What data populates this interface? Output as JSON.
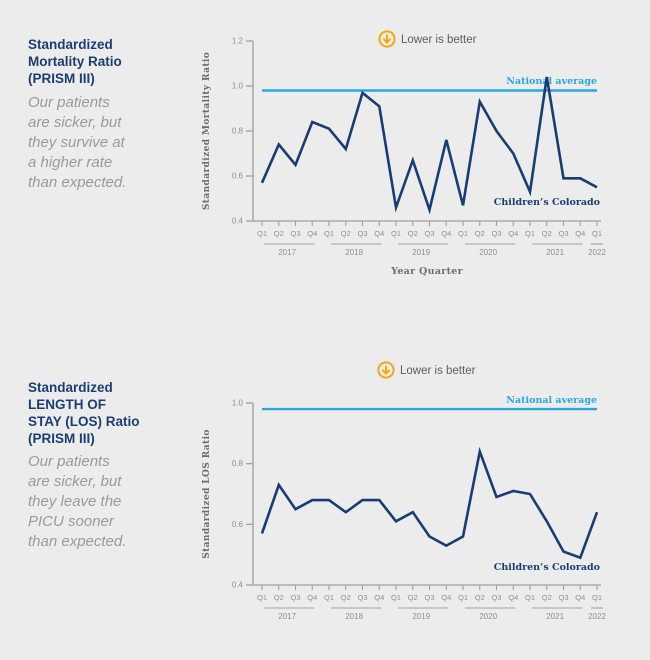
{
  "colors": {
    "background": "#ececec",
    "navy": "#193d72",
    "cyan": "#2aa6de",
    "orange": "#f3a712",
    "sub_gray": "#9a9a9a",
    "axis_gray": "#a0a0a0",
    "tick_gray": "#8f8f8f",
    "slab_gray": "#6c6c6c"
  },
  "panels": [
    {
      "heading": "Standardized\nMortality Ratio\n(PRISM III)",
      "subtext": "Our patients\nare sicker, but\nthey survive at\na higher rate\nthan expected."
    },
    {
      "heading": "Standardized\nLENGTH OF\nSTAY (LOS) Ratio\n(PRISM III)",
      "subtext": "Our patients\nare sicker, but\nthey leave the\nPICU sooner\nthan expected."
    }
  ],
  "chart_data": [
    {
      "type": "line",
      "annotation": "Lower is better",
      "ylabel": "Standardized Mortality Ratio",
      "xlabel": "Year Quarter",
      "ylim": [
        0.4,
        1.2
      ],
      "yticks": [
        0.4,
        0.6,
        0.8,
        1.0,
        1.2
      ],
      "categories": [
        "Q1",
        "Q2",
        "Q3",
        "Q4",
        "Q1",
        "Q2",
        "Q3",
        "Q4",
        "Q1",
        "Q2",
        "Q3",
        "Q4",
        "Q1",
        "Q2",
        "Q3",
        "Q4",
        "Q1",
        "Q2",
        "Q3",
        "Q4",
        "Q1"
      ],
      "year_groups": [
        {
          "label": "2017",
          "count": 4
        },
        {
          "label": "2018",
          "count": 4
        },
        {
          "label": "2019",
          "count": 4
        },
        {
          "label": "2020",
          "count": 4
        },
        {
          "label": "2021",
          "count": 4
        },
        {
          "label": "2022",
          "count": 1
        }
      ],
      "series": [
        {
          "name": "Children’s Colorado",
          "values": [
            0.57,
            0.74,
            0.65,
            0.84,
            0.81,
            0.72,
            0.97,
            0.91,
            0.46,
            0.67,
            0.45,
            0.76,
            0.47,
            0.93,
            0.8,
            0.7,
            0.53,
            1.04,
            0.59,
            0.59,
            0.55
          ]
        }
      ],
      "reference_line": {
        "label": "National average",
        "value": 0.98
      },
      "legend_position": "in-plot",
      "grid": false
    },
    {
      "type": "line",
      "annotation": "Lower is better",
      "ylabel": "Standardized LOS Ratio",
      "xlabel": "",
      "ylim": [
        0.4,
        1.0
      ],
      "yticks": [
        0.4,
        0.6,
        0.8,
        1.0
      ],
      "categories": [
        "Q1",
        "Q2",
        "Q3",
        "Q4",
        "Q1",
        "Q2",
        "Q3",
        "Q4",
        "Q1",
        "Q2",
        "Q3",
        "Q4",
        "Q1",
        "Q2",
        "Q3",
        "Q4",
        "Q1",
        "Q2",
        "Q3",
        "Q4",
        "Q1"
      ],
      "year_groups": [
        {
          "label": "2017",
          "count": 4
        },
        {
          "label": "2018",
          "count": 4
        },
        {
          "label": "2019",
          "count": 4
        },
        {
          "label": "2020",
          "count": 4
        },
        {
          "label": "2021",
          "count": 4
        },
        {
          "label": "2022",
          "count": 1
        }
      ],
      "series": [
        {
          "name": "Children’s Colorado",
          "values": [
            0.57,
            0.73,
            0.65,
            0.68,
            0.68,
            0.64,
            0.68,
            0.68,
            0.61,
            0.64,
            0.56,
            0.53,
            0.56,
            0.84,
            0.69,
            0.71,
            0.7,
            0.61,
            0.51,
            0.49,
            0.64
          ]
        }
      ],
      "reference_line": {
        "label": "National average",
        "value": 0.98
      },
      "legend_position": "in-plot",
      "grid": false
    }
  ]
}
